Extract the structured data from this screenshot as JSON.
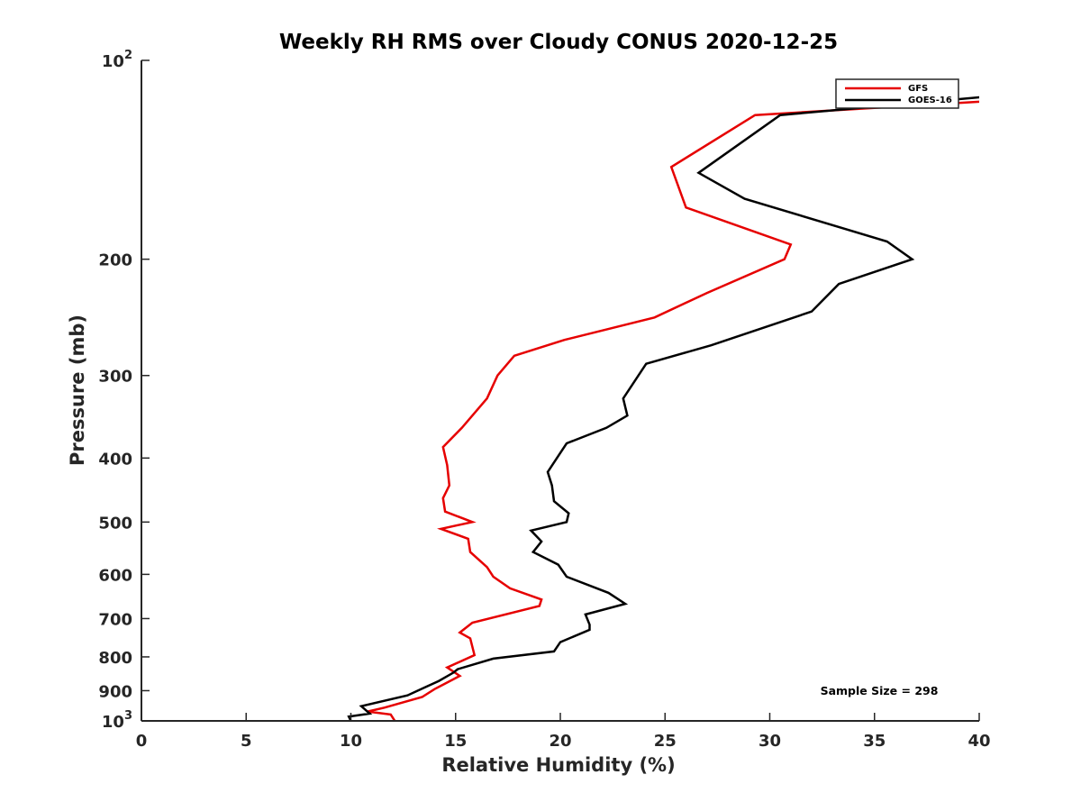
{
  "chart_data": {
    "type": "line",
    "title": "Weekly RH RMS over Cloudy CONUS 2020-12-25",
    "xlabel": "Relative Humidity (%)",
    "ylabel": "Pressure (mb)",
    "xlim": [
      0,
      40
    ],
    "ylim": [
      100,
      1000
    ],
    "y_scale": "log",
    "y_reversed": true,
    "x_ticks": [
      "0",
      "5",
      "10",
      "15",
      "20",
      "25",
      "30",
      "35",
      "40"
    ],
    "y_ticks": [
      {
        "value": 100,
        "base": "10",
        "exp": "2"
      },
      {
        "value": 200,
        "label": "200"
      },
      {
        "value": 300,
        "label": "300"
      },
      {
        "value": 400,
        "label": "400"
      },
      {
        "value": 500,
        "label": "500"
      },
      {
        "value": 600,
        "label": "600"
      },
      {
        "value": 700,
        "label": "700"
      },
      {
        "value": 800,
        "label": "800"
      },
      {
        "value": 900,
        "label": "900"
      },
      {
        "value": 1000,
        "base": "10",
        "exp": "3"
      }
    ],
    "grid": false,
    "legend_position": "top-right",
    "annotation": "Sample Size = 298",
    "series": [
      {
        "name": "GFS",
        "color": "#e60000",
        "points": [
          [
            41.0,
            115
          ],
          [
            29.3,
            121
          ],
          [
            25.3,
            145
          ],
          [
            26.0,
            167
          ],
          [
            31.0,
            190
          ],
          [
            30.7,
            200
          ],
          [
            27.0,
            225
          ],
          [
            24.5,
            245
          ],
          [
            20.2,
            265
          ],
          [
            17.8,
            280
          ],
          [
            17.0,
            300
          ],
          [
            16.5,
            325
          ],
          [
            15.3,
            360
          ],
          [
            14.4,
            385
          ],
          [
            14.6,
            410
          ],
          [
            14.7,
            440
          ],
          [
            14.4,
            460
          ],
          [
            14.5,
            482
          ],
          [
            15.8,
            500
          ],
          [
            14.3,
            512
          ],
          [
            15.6,
            530
          ],
          [
            15.7,
            555
          ],
          [
            16.5,
            585
          ],
          [
            16.8,
            605
          ],
          [
            17.6,
            630
          ],
          [
            19.1,
            655
          ],
          [
            19.0,
            670
          ],
          [
            15.8,
            710
          ],
          [
            15.2,
            735
          ],
          [
            15.7,
            750
          ],
          [
            15.9,
            795
          ],
          [
            14.6,
            830
          ],
          [
            15.2,
            855
          ],
          [
            14.0,
            895
          ],
          [
            13.4,
            920
          ],
          [
            11.6,
            955
          ],
          [
            10.8,
            968
          ],
          [
            11.9,
            978
          ],
          [
            12.1,
            1000
          ]
        ]
      },
      {
        "name": "GOES-16",
        "color": "#000000",
        "points": [
          [
            41.0,
            113
          ],
          [
            30.5,
            121
          ],
          [
            26.6,
            148
          ],
          [
            28.8,
            162
          ],
          [
            35.6,
            188
          ],
          [
            36.8,
            200
          ],
          [
            33.3,
            218
          ],
          [
            32.0,
            240
          ],
          [
            27.2,
            270
          ],
          [
            24.1,
            288
          ],
          [
            23.0,
            325
          ],
          [
            23.2,
            345
          ],
          [
            22.2,
            360
          ],
          [
            20.3,
            380
          ],
          [
            19.4,
            420
          ],
          [
            19.6,
            440
          ],
          [
            19.7,
            465
          ],
          [
            20.4,
            485
          ],
          [
            20.3,
            500
          ],
          [
            18.6,
            515
          ],
          [
            19.1,
            535
          ],
          [
            18.7,
            555
          ],
          [
            19.9,
            580
          ],
          [
            20.3,
            605
          ],
          [
            22.3,
            640
          ],
          [
            23.1,
            665
          ],
          [
            21.2,
            690
          ],
          [
            21.4,
            715
          ],
          [
            21.4,
            728
          ],
          [
            20.0,
            760
          ],
          [
            19.7,
            785
          ],
          [
            16.8,
            805
          ],
          [
            15.1,
            835
          ],
          [
            14.9,
            845
          ],
          [
            14.2,
            870
          ],
          [
            12.7,
            915
          ],
          [
            10.5,
            950
          ],
          [
            10.9,
            975
          ],
          [
            9.9,
            985
          ],
          [
            10.0,
            1000
          ]
        ]
      }
    ]
  }
}
